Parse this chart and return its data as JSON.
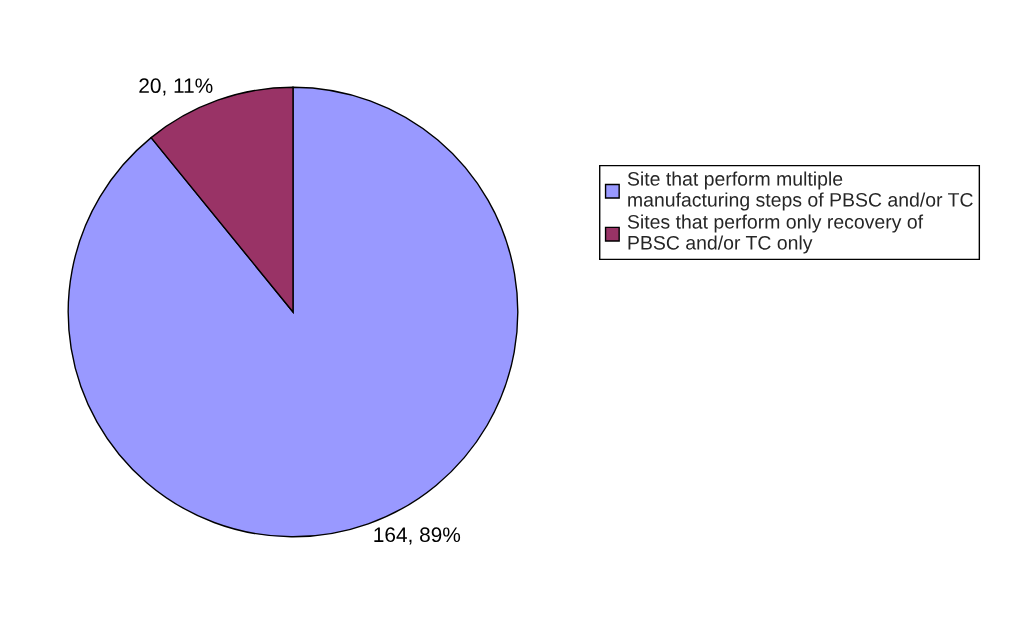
{
  "chart_data": {
    "type": "pie",
    "categories": [
      "Site that perform multiple manufacturing steps of PBSC and/or TC",
      "Sites that perform only recovery of PBSC and/or TC only"
    ],
    "values": [
      164,
      20
    ],
    "colors": [
      "#9999ff",
      "#993366"
    ],
    "value_labels": [
      "164, 89%",
      "20, 11%"
    ],
    "legend": "right"
  }
}
